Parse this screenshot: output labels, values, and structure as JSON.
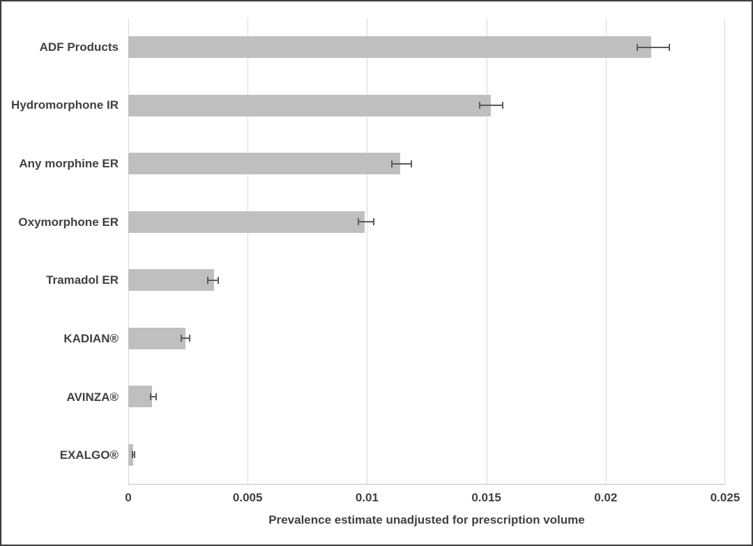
{
  "chart_data": {
    "type": "bar",
    "orientation": "horizontal",
    "title": "",
    "xlabel": "Prevalence estimate unadjusted for prescription volume",
    "ylabel": "",
    "xlim": [
      0,
      0.025
    ],
    "x_ticks": [
      "0",
      "0.005",
      "0.01",
      "0.015",
      "0.02",
      "0.025"
    ],
    "x_tick_values": [
      0,
      0.005,
      0.01,
      0.015,
      0.02,
      0.025
    ],
    "grid": "vertical",
    "legend": "none",
    "error_bars": true,
    "categories": [
      "ADF Products",
      "Hydromorphone IR",
      "Any morphine ER",
      "Oxymorphone ER",
      "Tramadol ER",
      "KADIAN®",
      "AVINZA®",
      "EXALGO®"
    ],
    "series": [
      {
        "name": "Prevalence estimate",
        "values": [
          0.0219,
          0.0152,
          0.0114,
          0.0099,
          0.0036,
          0.0024,
          0.001,
          0.0002
        ],
        "error_low": [
          0.0213,
          0.0147,
          0.011,
          0.0096,
          0.0033,
          0.0022,
          0.0009,
          0.00015
        ],
        "error_high": [
          0.0227,
          0.0157,
          0.0119,
          0.0103,
          0.0038,
          0.0026,
          0.0012,
          0.0003
        ]
      }
    ],
    "colors": {
      "bar": "#bfbfbf",
      "error": "#595959",
      "grid": "#d9d9d9",
      "axis": "#bfbfbf",
      "text": "#404040",
      "border": "#404040"
    }
  }
}
